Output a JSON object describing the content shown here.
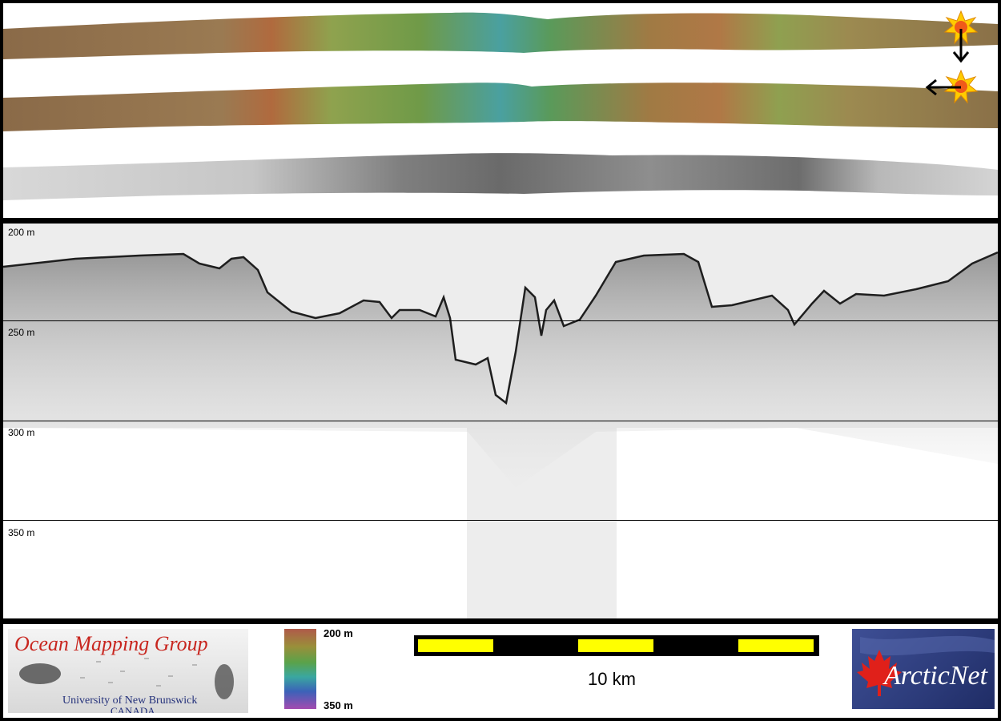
{
  "profile": {
    "depth_labels": [
      "200 m",
      "250 m",
      "300 m",
      "350 m"
    ]
  },
  "footer": {
    "omg_title": "Ocean Mapping Group",
    "omg_subtitle_line1": "University of New Brunswick",
    "omg_subtitle_line2": "CANADA",
    "colorbar_top": "200 m",
    "colorbar_bottom": "350 m",
    "scale_label": "10 km",
    "arctic_logo_text": "ArcticNet"
  },
  "icons": {
    "sun_top": "sun-icon",
    "sun_bottom": "sun-icon",
    "arrow_down": "arrow-down-icon",
    "arrow_left": "arrow-left-icon"
  },
  "colors": {
    "scale_yellow": "#ffff00",
    "omg_red": "#c8261f",
    "omg_blue": "#23307a",
    "arctic_blue": "#2c3b7a"
  }
}
